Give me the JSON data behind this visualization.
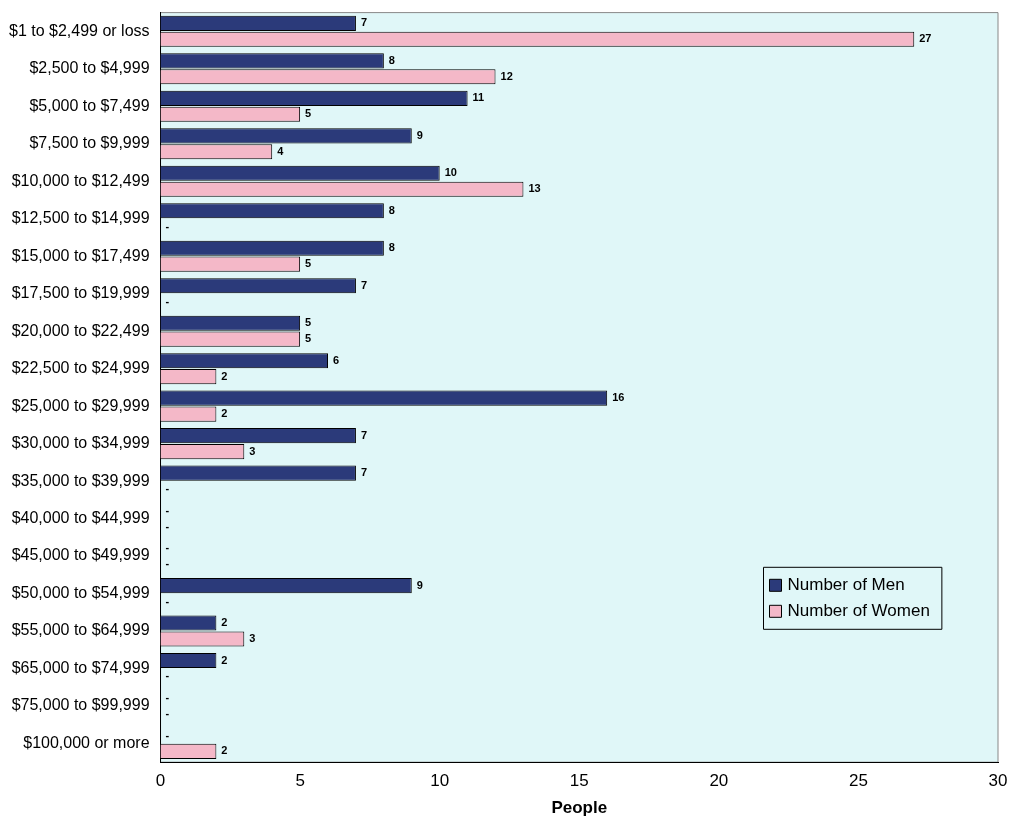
{
  "chart_data": {
    "type": "bar",
    "orientation": "horizontal",
    "xlabel": "People",
    "categories": [
      "$1 to $2,499 or loss",
      "$2,500 to $4,999",
      "$5,000 to $7,499",
      "$7,500 to $9,999",
      "$10,000 to $12,499",
      "$12,500 to $14,999",
      "$15,000 to $17,499",
      "$17,500 to $19,999",
      "$20,000 to $22,499",
      "$22,500 to $24,999",
      "$25,000 to $29,999",
      "$30,000 to $34,999",
      "$35,000 to $39,999",
      "$40,000 to $44,999",
      "$45,000 to $49,999",
      "$50,000 to $54,999",
      "$55,000 to $64,999",
      "$65,000 to $74,999",
      "$75,000 to $99,999",
      "$100,000 or more"
    ],
    "series": [
      {
        "name": "Number of Men",
        "color": "#2b3a7a",
        "values": [
          7,
          8,
          11,
          9,
          10,
          8,
          8,
          7,
          5,
          6,
          16,
          7,
          7,
          0,
          0,
          9,
          2,
          2,
          0,
          0
        ],
        "value_labels": [
          "7",
          "8",
          "11",
          "9",
          "10",
          "8",
          "8",
          "7",
          "5",
          "6",
          "16",
          "7",
          "7",
          "-",
          "-",
          "9",
          "2",
          "2",
          "-",
          "-"
        ]
      },
      {
        "name": "Number of Women",
        "color": "#f4b8c8",
        "values": [
          27,
          12,
          5,
          4,
          13,
          0,
          5,
          0,
          5,
          2,
          2,
          3,
          0,
          0,
          0,
          0,
          3,
          0,
          0,
          2
        ],
        "value_labels": [
          "27",
          "12",
          "5",
          "4",
          "13",
          "-",
          "5",
          "-",
          "5",
          "2",
          "2",
          "3",
          "-",
          "-",
          "-",
          "-",
          "3",
          "-",
          "-",
          "2"
        ]
      }
    ],
    "xlim": [
      0,
      30
    ],
    "xticks": [
      0,
      5,
      10,
      15,
      20,
      25,
      30
    ],
    "grid": false,
    "legend": "right"
  }
}
